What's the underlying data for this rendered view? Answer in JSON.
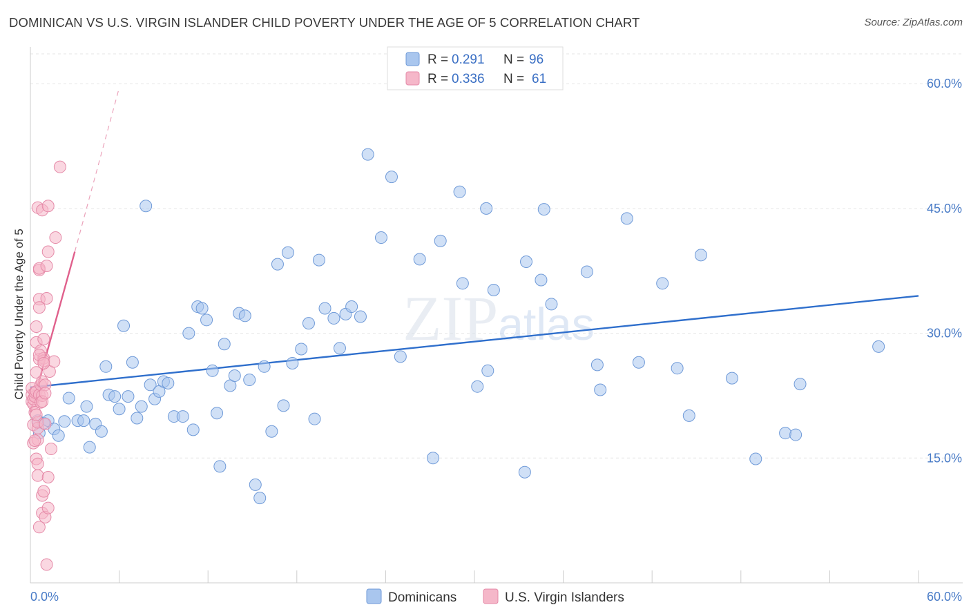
{
  "title": "DOMINICAN VS U.S. VIRGIN ISLANDER CHILD POVERTY UNDER THE AGE OF 5 CORRELATION CHART",
  "source": "Source: ZipAtlas.com",
  "watermark": "ZIPatlas",
  "colors": {
    "blue_fill": "#a9c6ee",
    "blue_stroke": "#6f9ad8",
    "blue_line": "#2f6fcc",
    "pink_fill": "#f5b7c9",
    "pink_stroke": "#e58aa8",
    "pink_line": "#e0608c",
    "tick_text": "#4a7cc7",
    "grid": "#e6e6e6"
  },
  "legend": {
    "rows": [
      {
        "r_label": "R =",
        "r_value": "0.291",
        "n_label": "N =",
        "n_value": "96",
        "color": "blue"
      },
      {
        "r_label": "R =",
        "r_value": "0.336",
        "n_label": "N =",
        "n_value": "61",
        "color": "pink"
      }
    ]
  },
  "chart_data": {
    "type": "scatter",
    "title": "DOMINICAN VS U.S. VIRGIN ISLANDER CHILD POVERTY UNDER THE AGE OF 5 CORRELATION CHART",
    "xlabel": "",
    "ylabel": "Child Poverty Under the Age of 5",
    "xlim": [
      0,
      60
    ],
    "ylim": [
      0,
      64
    ],
    "x_tick_labels": [
      "0.0%",
      "60.0%"
    ],
    "y_ticks": [
      15,
      30,
      45,
      60
    ],
    "y_tick_labels": [
      "15.0%",
      "30.0%",
      "45.0%",
      "60.0%"
    ],
    "grid": true,
    "legend_position": "top-center",
    "series": [
      {
        "name": "Dominicans",
        "color": "blue",
        "trend": {
          "x": [
            0,
            60
          ],
          "y": [
            23.5,
            34.5
          ],
          "dashed_extension": false
        },
        "points": [
          [
            0.5,
            19.5
          ],
          [
            0.6,
            18.0
          ],
          [
            0.9,
            19.2
          ],
          [
            1.2,
            19.5
          ],
          [
            1.6,
            18.5
          ],
          [
            1.9,
            17.7
          ],
          [
            2.3,
            19.4
          ],
          [
            2.6,
            22.2
          ],
          [
            3.2,
            19.5
          ],
          [
            3.6,
            19.5
          ],
          [
            3.8,
            21.2
          ],
          [
            4.0,
            16.3
          ],
          [
            4.4,
            19.1
          ],
          [
            4.8,
            18.2
          ],
          [
            5.1,
            26.0
          ],
          [
            5.3,
            22.6
          ],
          [
            5.7,
            22.4
          ],
          [
            6.0,
            20.9
          ],
          [
            6.3,
            30.9
          ],
          [
            6.6,
            22.4
          ],
          [
            6.9,
            26.5
          ],
          [
            7.2,
            19.8
          ],
          [
            7.5,
            21.2
          ],
          [
            7.8,
            45.3
          ],
          [
            8.1,
            23.8
          ],
          [
            8.4,
            22.1
          ],
          [
            8.7,
            23.0
          ],
          [
            9.0,
            24.2
          ],
          [
            9.3,
            24.0
          ],
          [
            9.7,
            20.0
          ],
          [
            10.3,
            20.0
          ],
          [
            10.7,
            30.0
          ],
          [
            11.0,
            18.4
          ],
          [
            11.3,
            33.2
          ],
          [
            11.6,
            33.0
          ],
          [
            11.9,
            31.6
          ],
          [
            12.3,
            25.5
          ],
          [
            12.6,
            20.4
          ],
          [
            12.8,
            14.0
          ],
          [
            13.1,
            28.7
          ],
          [
            13.5,
            23.7
          ],
          [
            13.8,
            24.9
          ],
          [
            14.1,
            32.4
          ],
          [
            14.5,
            32.1
          ],
          [
            14.8,
            24.4
          ],
          [
            15.2,
            11.8
          ],
          [
            15.5,
            10.2
          ],
          [
            15.8,
            26.0
          ],
          [
            16.3,
            18.2
          ],
          [
            16.7,
            38.3
          ],
          [
            17.1,
            21.3
          ],
          [
            17.4,
            39.7
          ],
          [
            17.7,
            26.4
          ],
          [
            18.3,
            28.1
          ],
          [
            18.8,
            31.2
          ],
          [
            19.2,
            19.7
          ],
          [
            19.5,
            38.8
          ],
          [
            19.9,
            33.0
          ],
          [
            20.5,
            31.8
          ],
          [
            20.9,
            28.2
          ],
          [
            21.3,
            32.3
          ],
          [
            21.7,
            33.2
          ],
          [
            22.3,
            32.0
          ],
          [
            22.8,
            51.5
          ],
          [
            23.7,
            41.5
          ],
          [
            24.4,
            48.8
          ],
          [
            25.0,
            27.2
          ],
          [
            26.3,
            38.9
          ],
          [
            27.2,
            15.0
          ],
          [
            27.7,
            41.1
          ],
          [
            29.0,
            47.0
          ],
          [
            29.2,
            36.0
          ],
          [
            30.2,
            23.6
          ],
          [
            30.8,
            45.0
          ],
          [
            30.9,
            25.5
          ],
          [
            31.3,
            35.2
          ],
          [
            33.4,
            13.3
          ],
          [
            33.5,
            38.6
          ],
          [
            34.5,
            36.4
          ],
          [
            34.7,
            44.9
          ],
          [
            35.2,
            33.5
          ],
          [
            37.6,
            37.4
          ],
          [
            38.3,
            26.2
          ],
          [
            38.5,
            23.2
          ],
          [
            40.3,
            43.8
          ],
          [
            41.1,
            26.5
          ],
          [
            42.7,
            36.0
          ],
          [
            43.7,
            25.8
          ],
          [
            44.5,
            20.1
          ],
          [
            45.3,
            39.4
          ],
          [
            47.4,
            24.6
          ],
          [
            49.0,
            14.9
          ],
          [
            51.0,
            18.0
          ],
          [
            51.7,
            17.8
          ],
          [
            52.0,
            23.9
          ],
          [
            57.3,
            28.4
          ]
        ]
      },
      {
        "name": "U.S. Virgin Islanders",
        "color": "pink",
        "trend": {
          "x": [
            0,
            3
          ],
          "y": [
            20.5,
            39.8
          ],
          "dashed_extension": true,
          "dashed_to": [
            6.0,
            59.5
          ]
        },
        "points": [
          [
            0.1,
            21.8
          ],
          [
            0.1,
            22.6
          ],
          [
            0.1,
            23.4
          ],
          [
            0.2,
            16.8
          ],
          [
            0.2,
            19.0
          ],
          [
            0.2,
            21.5
          ],
          [
            0.2,
            22.1
          ],
          [
            0.3,
            20.5
          ],
          [
            0.3,
            22.4
          ],
          [
            0.3,
            22.9
          ],
          [
            0.4,
            25.3
          ],
          [
            0.4,
            23.0
          ],
          [
            0.4,
            28.9
          ],
          [
            0.4,
            30.8
          ],
          [
            0.4,
            14.9
          ],
          [
            0.5,
            17.2
          ],
          [
            0.5,
            18.6
          ],
          [
            0.5,
            14.3
          ],
          [
            0.5,
            12.9
          ],
          [
            0.5,
            19.3
          ],
          [
            0.5,
            45.1
          ],
          [
            0.6,
            37.6
          ],
          [
            0.6,
            37.8
          ],
          [
            0.6,
            34.1
          ],
          [
            0.6,
            33.1
          ],
          [
            0.6,
            26.9
          ],
          [
            0.6,
            22.6
          ],
          [
            0.6,
            6.7
          ],
          [
            0.7,
            21.7
          ],
          [
            0.7,
            23.8
          ],
          [
            0.7,
            27.9
          ],
          [
            0.8,
            24.2
          ],
          [
            0.8,
            22.5
          ],
          [
            0.8,
            21.8
          ],
          [
            0.8,
            8.4
          ],
          [
            0.8,
            10.5
          ],
          [
            0.8,
            44.8
          ],
          [
            0.9,
            29.3
          ],
          [
            0.9,
            27.0
          ],
          [
            0.9,
            26.7
          ],
          [
            0.9,
            11.0
          ],
          [
            1.0,
            23.8
          ],
          [
            1.0,
            22.8
          ],
          [
            1.0,
            7.9
          ],
          [
            1.0,
            19.1
          ],
          [
            1.1,
            34.2
          ],
          [
            1.1,
            38.1
          ],
          [
            1.1,
            2.2
          ],
          [
            1.2,
            45.3
          ],
          [
            1.2,
            39.8
          ],
          [
            1.2,
            9.0
          ],
          [
            1.2,
            12.7
          ],
          [
            1.3,
            25.4
          ],
          [
            1.4,
            16.1
          ],
          [
            1.6,
            26.6
          ],
          [
            1.7,
            41.5
          ],
          [
            2.0,
            50.0
          ],
          [
            0.3,
            17.1
          ],
          [
            0.4,
            20.2
          ],
          [
            0.6,
            27.4
          ],
          [
            0.9,
            26.4
          ]
        ]
      }
    ]
  },
  "bottom_legend": {
    "items": [
      {
        "label": "Dominicans",
        "color": "blue"
      },
      {
        "label": "U.S. Virgin Islanders",
        "color": "pink"
      }
    ]
  }
}
